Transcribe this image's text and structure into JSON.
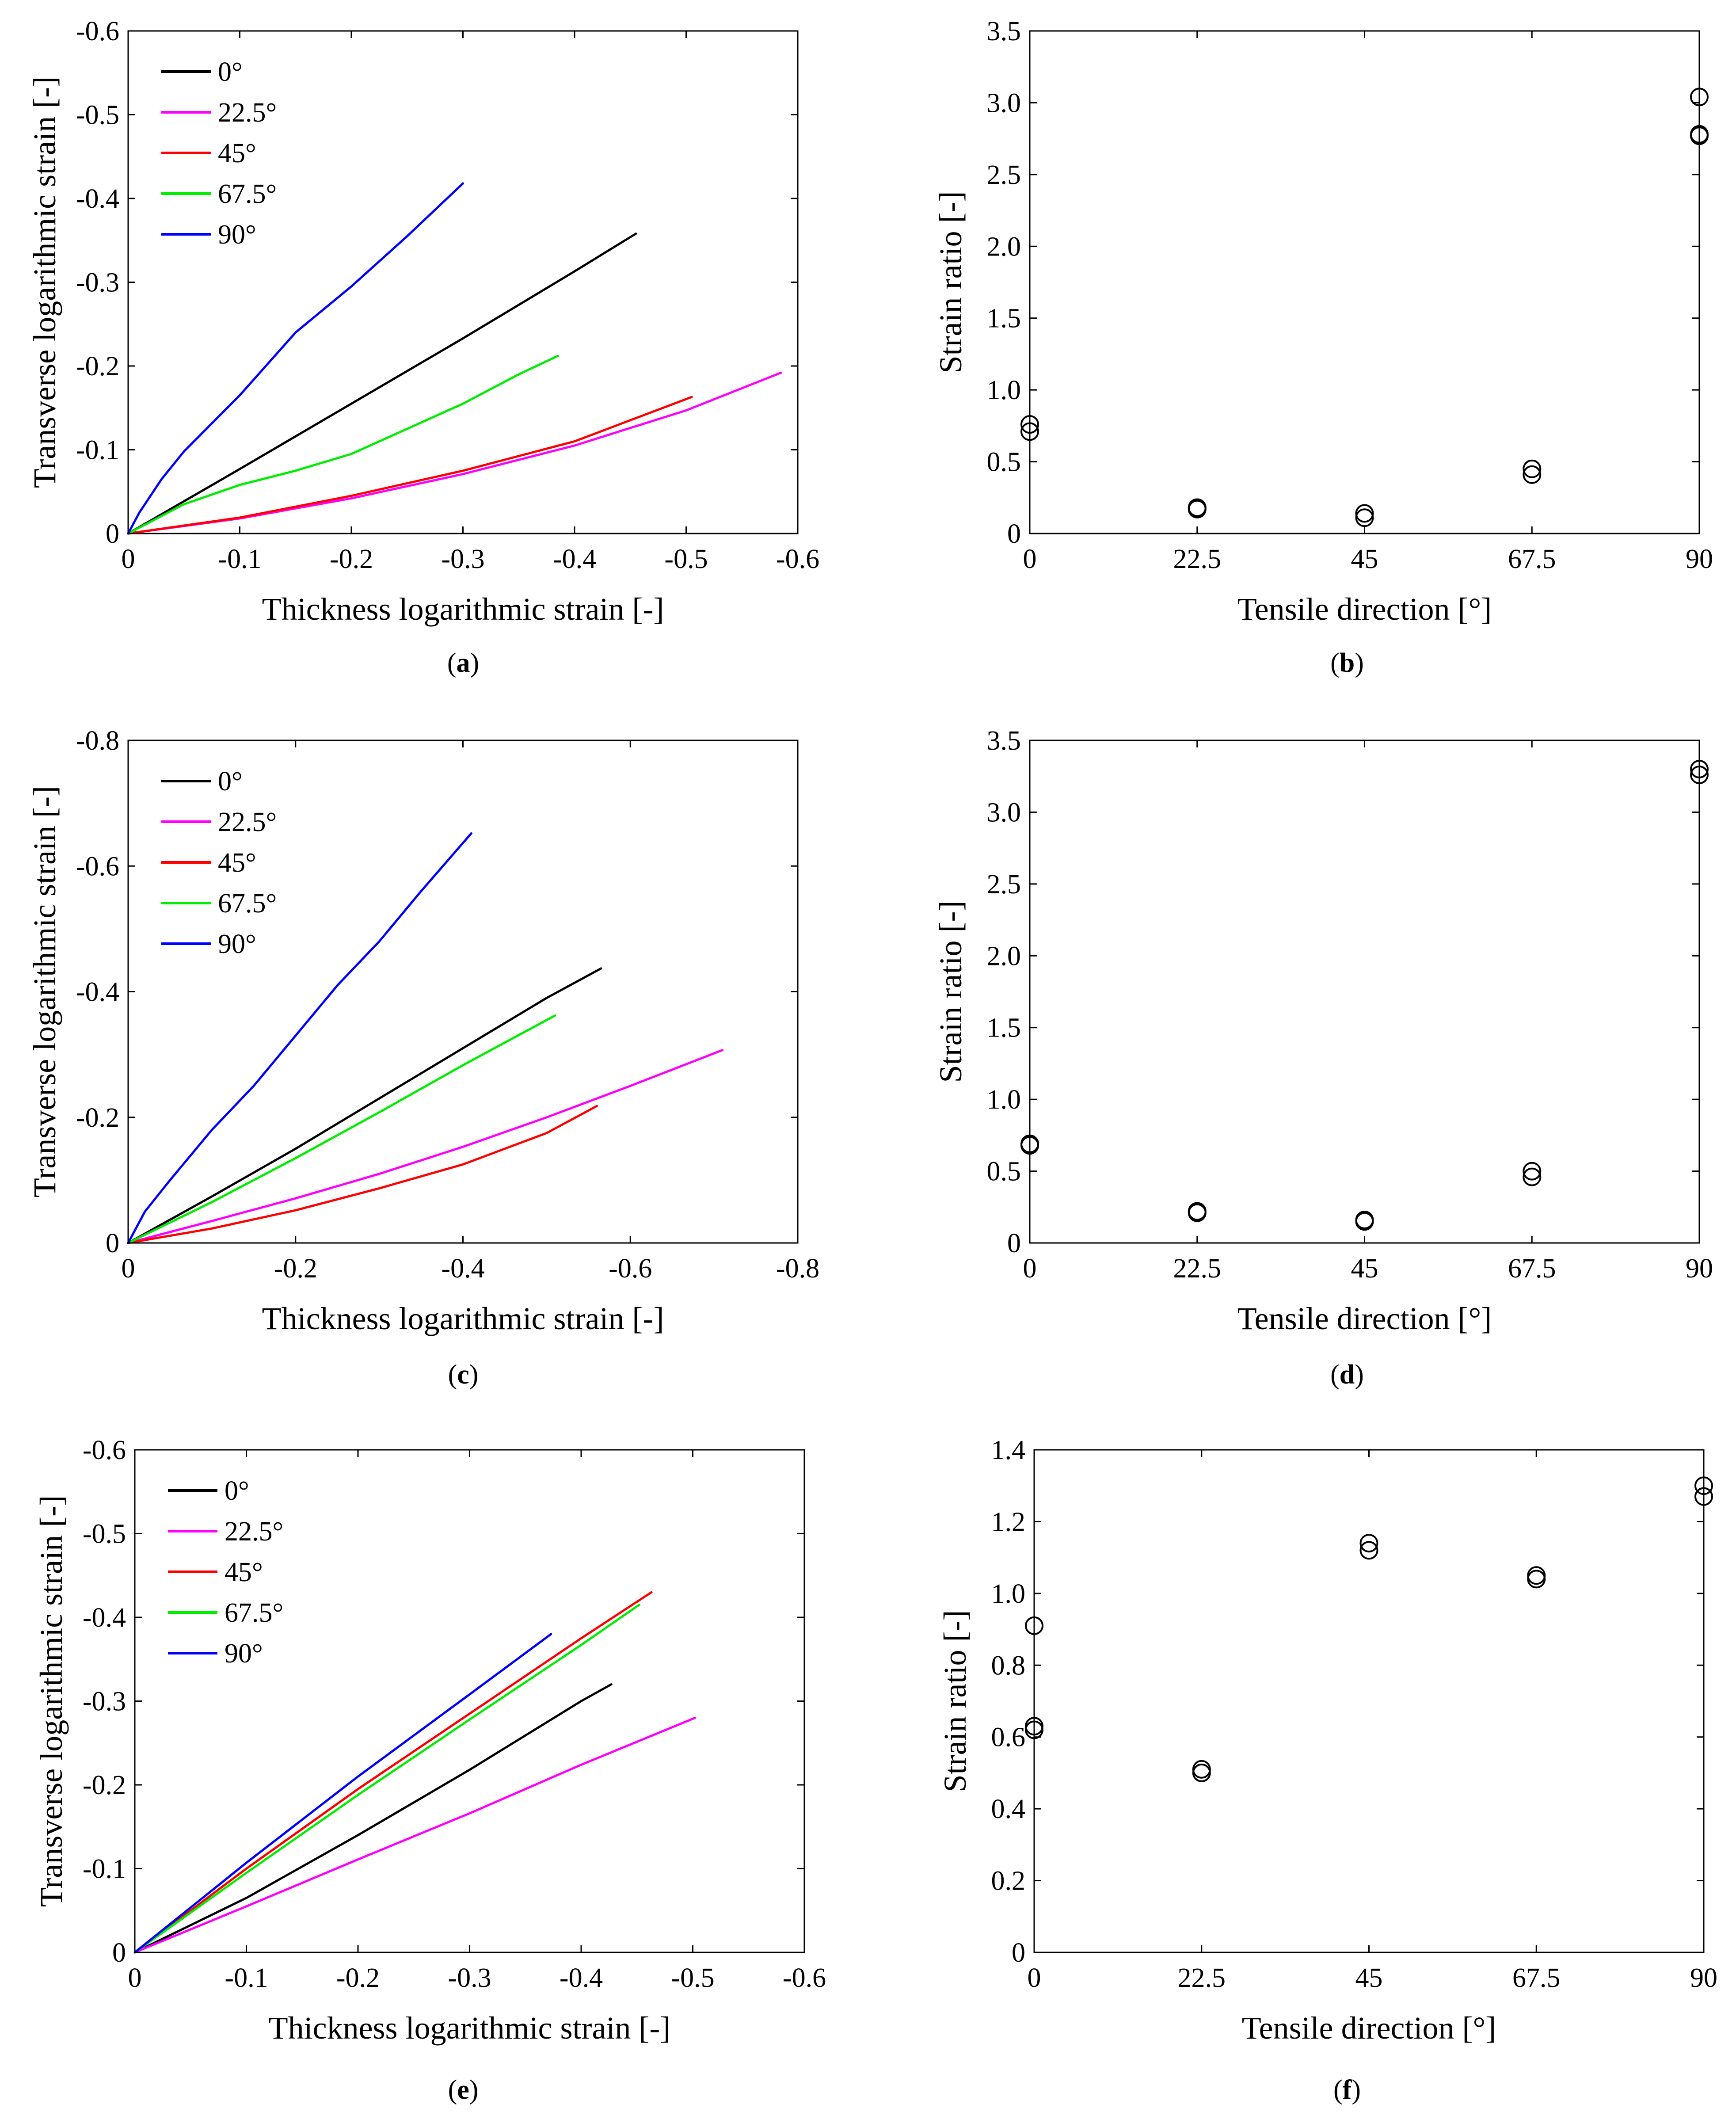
{
  "chart_data": [
    {
      "id": "a",
      "type": "line",
      "caption": "(a)",
      "caption_letter": "a",
      "xlabel": "Thickness logarithmic strain [-]",
      "ylabel": "Transverse logarithmic strain [-]",
      "xlim": [
        0,
        -0.6
      ],
      "ylim": [
        0,
        -0.6
      ],
      "xticks": [
        "0",
        "-0.1",
        "-0.2",
        "-0.3",
        "-0.4",
        "-0.5",
        "-0.6"
      ],
      "yticks": [
        "0",
        "-0.1",
        "-0.2",
        "-0.3",
        "-0.4",
        "-0.5",
        "-0.6"
      ],
      "legend_position": "top-left",
      "series": [
        {
          "name": "0°",
          "color": "#000000",
          "x": [
            0,
            -0.1,
            -0.2,
            -0.3,
            -0.4,
            -0.455
          ],
          "y": [
            0,
            -0.077,
            -0.155,
            -0.233,
            -0.313,
            -0.358
          ]
        },
        {
          "name": "22.5°",
          "color": "#ff00ff",
          "x": [
            0,
            -0.1,
            -0.2,
            -0.3,
            -0.4,
            -0.5,
            -0.585
          ],
          "y": [
            0,
            -0.018,
            -0.042,
            -0.071,
            -0.105,
            -0.147,
            -0.192
          ]
        },
        {
          "name": "45°",
          "color": "#ff0000",
          "x": [
            0,
            -0.1,
            -0.2,
            -0.3,
            -0.4,
            -0.505
          ],
          "y": [
            0,
            -0.019,
            -0.045,
            -0.075,
            -0.11,
            -0.163
          ]
        },
        {
          "name": "67.5°",
          "color": "#00ee00",
          "x": [
            0,
            -0.05,
            -0.1,
            -0.15,
            -0.2,
            -0.25,
            -0.3,
            -0.35,
            -0.385
          ],
          "y": [
            0,
            -0.035,
            -0.058,
            -0.075,
            -0.095,
            -0.125,
            -0.155,
            -0.19,
            -0.212
          ]
        },
        {
          "name": "90°",
          "color": "#0000ff",
          "x": [
            0,
            -0.01,
            -0.03,
            -0.05,
            -0.1,
            -0.15,
            -0.2,
            -0.25,
            -0.3
          ],
          "y": [
            0,
            -0.025,
            -0.065,
            -0.098,
            -0.165,
            -0.24,
            -0.295,
            -0.355,
            -0.418
          ]
        }
      ]
    },
    {
      "id": "b",
      "type": "scatter",
      "caption": "(b)",
      "caption_letter": "b",
      "xlabel": "Tensile direction [°]",
      "ylabel": "Strain ratio [-]",
      "xlim": [
        0,
        90
      ],
      "ylim": [
        0,
        3.5
      ],
      "xticks": [
        "0",
        "22.5",
        "45",
        "67.5",
        "90"
      ],
      "yticks": [
        "0",
        "0.5",
        "1.0",
        "1.5",
        "2.0",
        "2.5",
        "3.0",
        "3.5"
      ],
      "series": [
        {
          "name": "Strain ratio",
          "x": [
            0,
            0,
            22.5,
            22.5,
            45,
            45,
            67.5,
            67.5,
            90,
            90,
            90
          ],
          "y": [
            0.76,
            0.71,
            0.18,
            0.17,
            0.14,
            0.11,
            0.45,
            0.41,
            3.04,
            2.78,
            2.77
          ]
        }
      ]
    },
    {
      "id": "c",
      "type": "line",
      "caption": "(c)",
      "caption_letter": "c",
      "xlabel": "Thickness logarithmic strain [-]",
      "ylabel": "Transverse logarithmic strain [-]",
      "xlim": [
        0,
        -0.8
      ],
      "ylim": [
        0,
        -0.8
      ],
      "xticks": [
        "0",
        "-0.2",
        "-0.4",
        "-0.6",
        "-0.8"
      ],
      "yticks": [
        "0",
        "-0.2",
        "-0.4",
        "-0.6",
        "-0.8"
      ],
      "legend_position": "top-left",
      "series": [
        {
          "name": "0°",
          "color": "#000000",
          "x": [
            0,
            -0.1,
            -0.2,
            -0.3,
            -0.4,
            -0.5,
            -0.565
          ],
          "y": [
            0,
            -0.074,
            -0.15,
            -0.23,
            -0.31,
            -0.39,
            -0.437
          ]
        },
        {
          "name": "22.5°",
          "color": "#ff00ff",
          "x": [
            0,
            -0.1,
            -0.2,
            -0.3,
            -0.4,
            -0.5,
            -0.6,
            -0.71
          ],
          "y": [
            0,
            -0.035,
            -0.071,
            -0.11,
            -0.153,
            -0.2,
            -0.25,
            -0.307
          ]
        },
        {
          "name": "45°",
          "color": "#ff0000",
          "x": [
            0,
            -0.1,
            -0.2,
            -0.3,
            -0.4,
            -0.5,
            -0.56
          ],
          "y": [
            0,
            -0.023,
            -0.052,
            -0.087,
            -0.125,
            -0.175,
            -0.218
          ]
        },
        {
          "name": "67.5°",
          "color": "#00ee00",
          "x": [
            0,
            -0.1,
            -0.2,
            -0.3,
            -0.4,
            -0.51
          ],
          "y": [
            0,
            -0.065,
            -0.135,
            -0.208,
            -0.283,
            -0.362
          ]
        },
        {
          "name": "90°",
          "color": "#0000ff",
          "x": [
            0,
            -0.02,
            -0.05,
            -0.1,
            -0.15,
            -0.2,
            -0.25,
            -0.3,
            -0.35,
            -0.41
          ],
          "y": [
            0,
            -0.05,
            -0.1,
            -0.18,
            -0.25,
            -0.33,
            -0.41,
            -0.48,
            -0.56,
            -0.652
          ]
        }
      ]
    },
    {
      "id": "d",
      "type": "scatter",
      "caption": "(d)",
      "caption_letter": "d",
      "xlabel": "Tensile direction [°]",
      "ylabel": "Strain ratio [-]",
      "xlim": [
        0,
        90
      ],
      "ylim": [
        0,
        3.5
      ],
      "xticks": [
        "0",
        "22.5",
        "45",
        "67.5",
        "90"
      ],
      "yticks": [
        "0",
        "0.5",
        "1.0",
        "1.5",
        "2.0",
        "2.5",
        "3.0",
        "3.5"
      ],
      "series": [
        {
          "name": "Strain ratio",
          "x": [
            0,
            0,
            22.5,
            22.5,
            45,
            45,
            67.5,
            67.5,
            90,
            90
          ],
          "y": [
            0.69,
            0.68,
            0.22,
            0.21,
            0.16,
            0.15,
            0.5,
            0.46,
            3.3,
            3.26
          ]
        }
      ]
    },
    {
      "id": "e",
      "type": "line",
      "caption": "(e)",
      "caption_letter": "e",
      "xlabel": "Thickness logarithmic strain [-]",
      "ylabel": "Transverse logarithmic strain [-]",
      "xlim": [
        0,
        -0.6
      ],
      "ylim": [
        0,
        -0.6
      ],
      "xticks": [
        "0",
        "-0.1",
        "-0.2",
        "-0.3",
        "-0.4",
        "-0.5",
        "-0.6"
      ],
      "yticks": [
        "0",
        "-0.1",
        "-0.2",
        "-0.3",
        "-0.4",
        "-0.5",
        "-0.6"
      ],
      "legend_position": "top-left",
      "series": [
        {
          "name": "0°",
          "color": "#000000",
          "x": [
            0,
            -0.1,
            -0.2,
            -0.3,
            -0.4,
            -0.427
          ],
          "y": [
            0,
            -0.065,
            -0.14,
            -0.218,
            -0.3,
            -0.32
          ]
        },
        {
          "name": "22.5°",
          "color": "#ff00ff",
          "x": [
            0,
            -0.1,
            -0.2,
            -0.3,
            -0.4,
            -0.502
          ],
          "y": [
            0,
            -0.055,
            -0.111,
            -0.166,
            -0.224,
            -0.28
          ]
        },
        {
          "name": "45°",
          "color": "#ff0000",
          "x": [
            0,
            -0.1,
            -0.2,
            -0.3,
            -0.4,
            -0.463
          ],
          "y": [
            0,
            -0.1,
            -0.195,
            -0.285,
            -0.375,
            -0.43
          ]
        },
        {
          "name": "67.5°",
          "color": "#00ee00",
          "x": [
            0,
            -0.1,
            -0.2,
            -0.3,
            -0.4,
            -0.452
          ],
          "y": [
            0,
            -0.095,
            -0.188,
            -0.278,
            -0.367,
            -0.415
          ]
        },
        {
          "name": "90°",
          "color": "#0000ff",
          "x": [
            0,
            -0.1,
            -0.2,
            -0.3,
            -0.373
          ],
          "y": [
            0,
            -0.107,
            -0.21,
            -0.308,
            -0.38
          ]
        }
      ]
    },
    {
      "id": "f",
      "type": "scatter",
      "caption": "(f)",
      "caption_letter": "f",
      "xlabel": "Tensile direction [°]",
      "ylabel": "Strain ratio [-]",
      "xlim": [
        0,
        90
      ],
      "ylim": [
        0,
        1.4
      ],
      "xticks": [
        "0",
        "22.5",
        "45",
        "67.5",
        "90"
      ],
      "yticks": [
        "0",
        "0.2",
        "0.4",
        "0.6",
        "0.8",
        "1.0",
        "1.2",
        "1.4"
      ],
      "series": [
        {
          "name": "Strain ratio",
          "x": [
            0,
            0,
            0,
            22.5,
            22.5,
            45,
            45,
            67.5,
            67.5,
            90,
            90
          ],
          "y": [
            0.91,
            0.63,
            0.62,
            0.51,
            0.5,
            1.14,
            1.12,
            1.05,
            1.04,
            1.3,
            1.27
          ]
        }
      ]
    }
  ]
}
